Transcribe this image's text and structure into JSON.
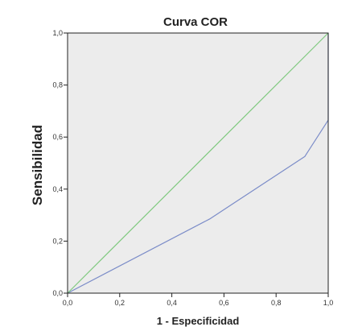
{
  "chart_data": {
    "type": "line",
    "title": "Curva COR",
    "xlabel": "1 - Especificidad",
    "ylabel": "Sensibilidad",
    "xlim": [
      0,
      1
    ],
    "ylim": [
      0,
      1
    ],
    "x_ticks": [
      "0,0",
      "0,2",
      "0,4",
      "0,6",
      "0,8",
      "1,0"
    ],
    "y_ticks": [
      "0,0",
      "0,2",
      "0,4",
      "0,6",
      "0,8",
      "1,0"
    ],
    "grid": false,
    "series": [
      {
        "name": "",
        "color": "#7b8cc8",
        "x": [
          0.0,
          0.545,
          0.91,
          1.0,
          1.0
        ],
        "y": [
          0.0,
          0.285,
          0.525,
          0.665,
          1.0
        ]
      },
      {
        "name": "",
        "color": "#7fc97f",
        "x": [
          0.0,
          1.0
        ],
        "y": [
          0.0,
          1.0
        ]
      }
    ],
    "colors": {
      "plot_background": "#ececec",
      "frame": "#222222"
    }
  }
}
